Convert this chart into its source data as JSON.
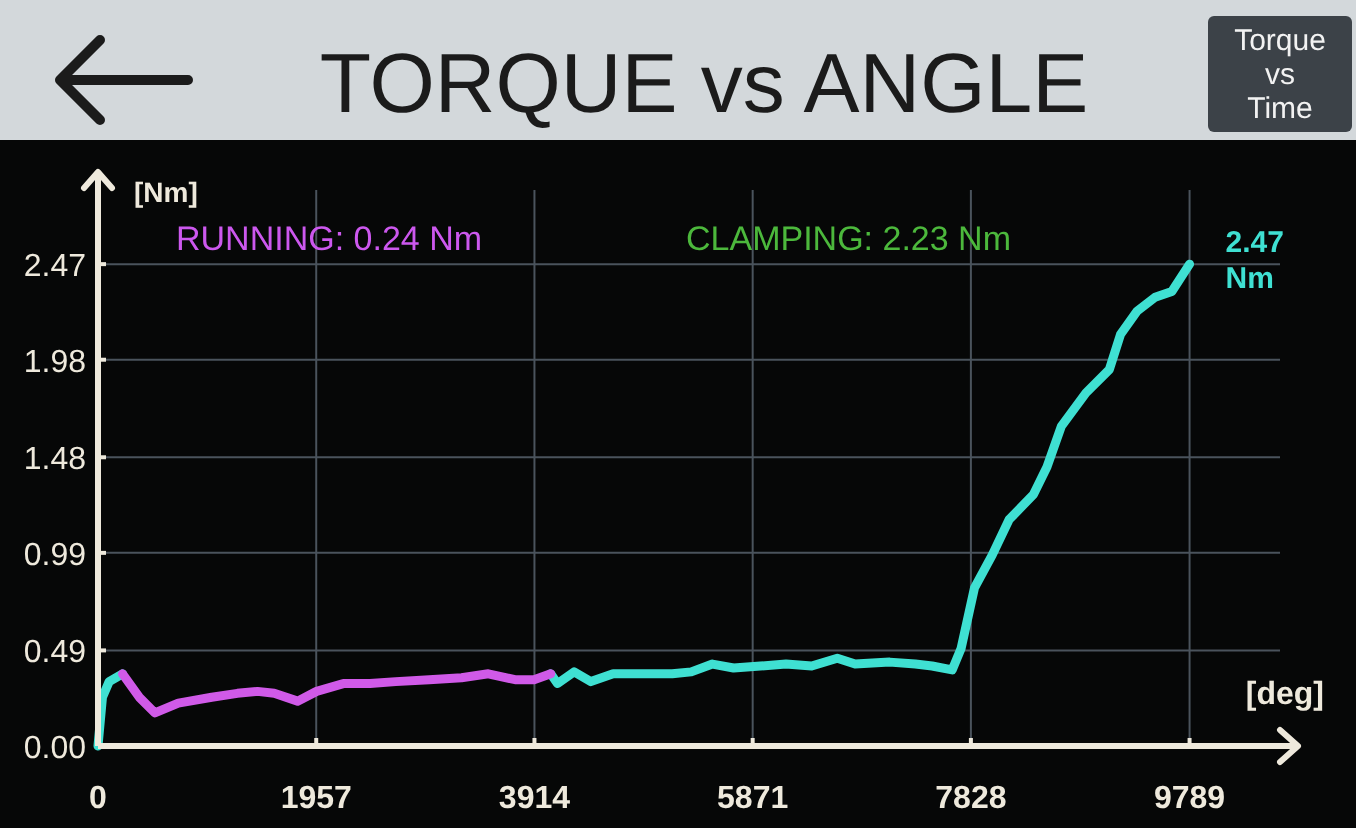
{
  "chart_data": {
    "type": "line",
    "title": "TORQUE vs ANGLE",
    "xlabel": "[deg]",
    "ylabel": "[Nm]",
    "annotations": [
      "RUNNING: 0.24 Nm",
      "CLAMPING: 2.23 Nm",
      "2.47 Nm",
      "Torque vs Time"
    ],
    "xlim": [
      0,
      10600
    ],
    "ylim": [
      0,
      2.85
    ],
    "xticks": [
      0,
      1957,
      3914,
      5871,
      7828,
      9789
    ],
    "yticks": [
      {
        "value": 0,
        "label": "0.00"
      },
      0.49,
      0.99,
      1.48,
      1.98,
      2.47
    ],
    "grid": true,
    "line_style": "solid",
    "series": [
      {
        "color": "#3fe0d2",
        "x": [
          0,
          40,
          100,
          220,
          2000,
          4060,
          4120,
          4270,
          4420,
          4620,
          4920,
          5150,
          5320,
          5510,
          5700,
          5940,
          6170,
          6400,
          6630,
          6790,
          7100,
          7330,
          7480,
          7660,
          7740,
          7860,
          8020,
          8170,
          8390,
          8510,
          8640,
          8860,
          9070,
          9170,
          9320,
          9480,
          9630,
          9789
        ],
        "values": [
          0,
          0.25,
          0.33,
          0.37,
          null,
          0.37,
          0.32,
          0.38,
          0.33,
          0.37,
          0.37,
          0.37,
          0.38,
          0.42,
          0.4,
          0.41,
          0.42,
          0.41,
          0.45,
          0.42,
          0.43,
          0.42,
          0.41,
          0.39,
          0.5,
          0.81,
          0.98,
          1.16,
          1.29,
          1.43,
          1.64,
          1.81,
          1.93,
          2.11,
          2.23,
          2.3,
          2.33,
          2.47
        ]
      },
      {
        "color": "#d05ae8",
        "x": [
          220,
          370,
          510,
          720,
          1020,
          1250,
          1430,
          1580,
          1790,
          1960,
          2200,
          2440,
          2670,
          2970,
          3260,
          3500,
          3740,
          3910,
          4060
        ],
        "values": [
          0.37,
          0.25,
          0.17,
          0.22,
          0.25,
          0.27,
          0.28,
          0.27,
          0.23,
          0.28,
          0.32,
          0.32,
          0.33,
          0.34,
          0.35,
          0.37,
          0.34,
          0.34,
          0.37
        ]
      }
    ]
  }
}
